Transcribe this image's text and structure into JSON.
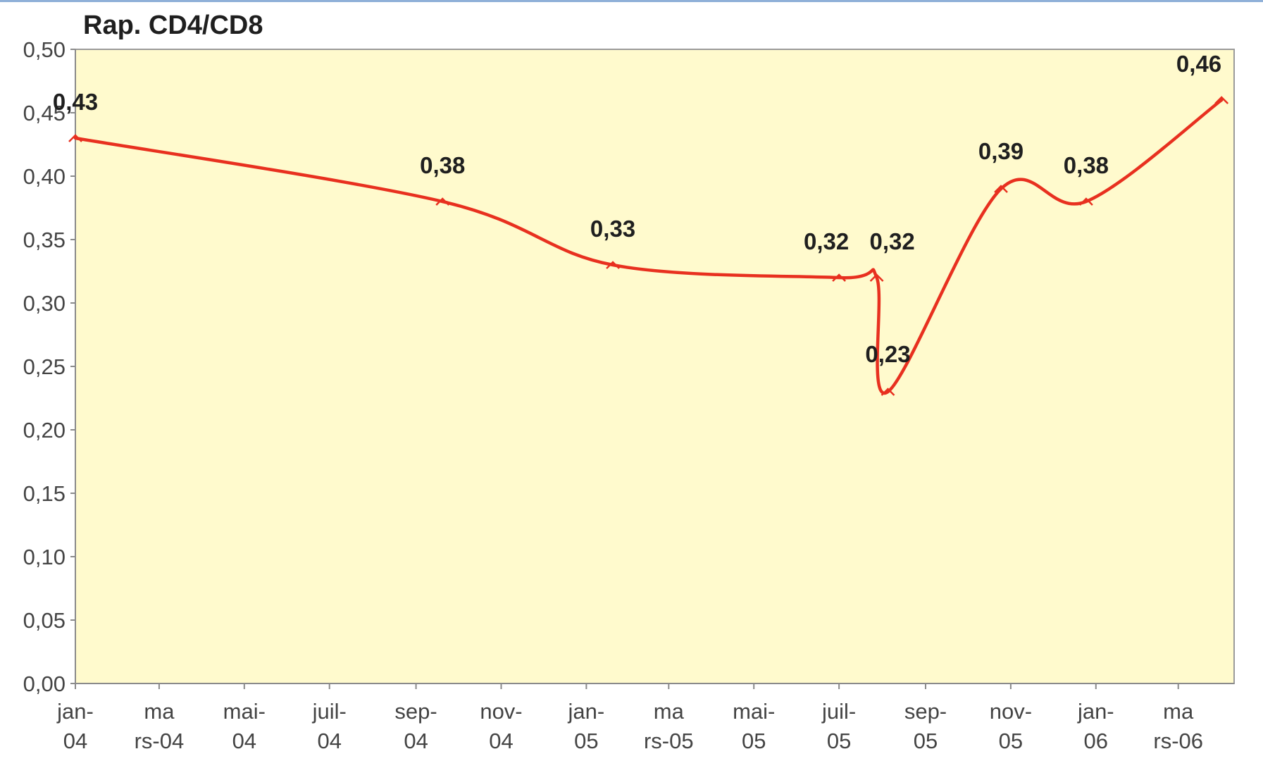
{
  "chart_data": {
    "type": "line",
    "title": "Rap. CD4/CD8",
    "xlabel": "",
    "ylabel": "",
    "ylim": [
      0,
      0.5
    ],
    "ytick_labels": [
      "0,00",
      "0,05",
      "0,10",
      "0,15",
      "0,20",
      "0,25",
      "0,30",
      "0,35",
      "0,40",
      "0,45",
      "0,50"
    ],
    "x_tick_labels": [
      [
        "jan-",
        "04"
      ],
      [
        "ma",
        "rs-04"
      ],
      [
        "mai-",
        "04"
      ],
      [
        "juil-",
        "04"
      ],
      [
        "sep-",
        "04"
      ],
      [
        "nov-",
        "04"
      ],
      [
        "jan-",
        "05"
      ],
      [
        "ma",
        "rs-05"
      ],
      [
        "mai-",
        "05"
      ],
      [
        "juil-",
        "05"
      ],
      [
        "sep-",
        "05"
      ],
      [
        "nov-",
        "05"
      ],
      [
        "jan-",
        "06"
      ],
      [
        "ma",
        "rs-06"
      ]
    ],
    "x_range": [
      "2004-01-01",
      "2006-04-10"
    ],
    "grid": false,
    "plot_background": "#fffacd",
    "series": [
      {
        "color": "#e8301f",
        "points": [
          {
            "date": "2004-01-01",
            "value": 0.43,
            "label": "0,43"
          },
          {
            "date": "2004-09-20",
            "value": 0.38,
            "label": "0,38"
          },
          {
            "date": "2005-01-20",
            "value": 0.33,
            "label": "0,33"
          },
          {
            "date": "2005-07-01",
            "value": 0.32,
            "label": "0,32"
          },
          {
            "date": "2005-07-28",
            "value": 0.32,
            "label": "0,32"
          },
          {
            "date": "2005-08-05",
            "value": 0.23,
            "label": "0,23"
          },
          {
            "date": "2005-10-25",
            "value": 0.39,
            "label": "0,39"
          },
          {
            "date": "2005-12-25",
            "value": 0.38,
            "label": "0,38"
          },
          {
            "date": "2006-04-01",
            "value": 0.46,
            "label": "0,46"
          }
        ]
      }
    ]
  }
}
